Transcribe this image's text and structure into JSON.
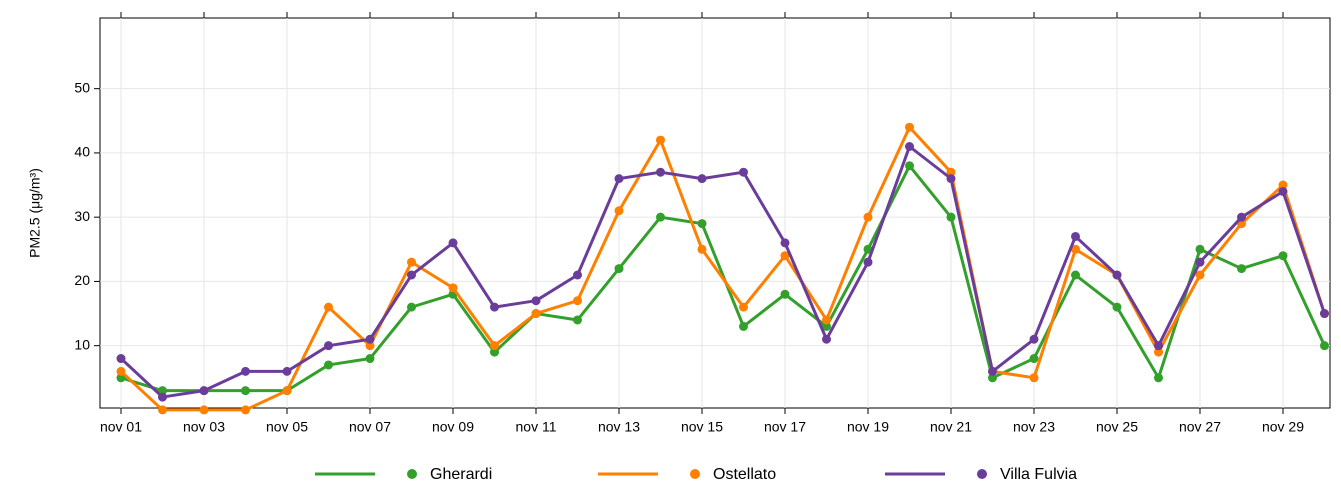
{
  "chart_data": {
    "type": "line",
    "y_label": "PM2.5 (μg/m³)",
    "categories": [
      "nov 01",
      null,
      "nov 03",
      null,
      "nov 05",
      null,
      "nov 07",
      null,
      "nov 09",
      null,
      "nov 11",
      null,
      "nov 13",
      null,
      "nov 15",
      null,
      "nov 17",
      null,
      "nov 19",
      null,
      "nov 21",
      null,
      "nov 23",
      null,
      "nov 25",
      null,
      "nov 27",
      null,
      "nov 29",
      null
    ],
    "series": [
      {
        "name": "Gherardi",
        "color": "#33a02c",
        "values": [
          5,
          3,
          3,
          3,
          3,
          7,
          8,
          16,
          18,
          9,
          15,
          14,
          22,
          30,
          29,
          13,
          18,
          13,
          25,
          38,
          30,
          5,
          8,
          21,
          16,
          5,
          25,
          22,
          24,
          10
        ]
      },
      {
        "name": "Ostellato",
        "color": "#ff7f00",
        "values": [
          6,
          0,
          0,
          0,
          3,
          16,
          10,
          23,
          19,
          10,
          15,
          17,
          31,
          42,
          25,
          16,
          24,
          14,
          30,
          44,
          37,
          6,
          5,
          25,
          21,
          9,
          21,
          29,
          35,
          15
        ]
      },
      {
        "name": "Villa Fulvia",
        "color": "#6a3d9a",
        "values": [
          8,
          2,
          3,
          6,
          6,
          10,
          11,
          21,
          26,
          16,
          17,
          21,
          36,
          37,
          36,
          37,
          26,
          11,
          23,
          41,
          36,
          6,
          11,
          27,
          21,
          10,
          23,
          30,
          34,
          15
        ]
      }
    ],
    "ylim": [
      0.3,
      61
    ],
    "yticks": [
      10,
      20,
      30,
      40,
      50
    ],
    "grid": true,
    "legend": "bottom"
  }
}
